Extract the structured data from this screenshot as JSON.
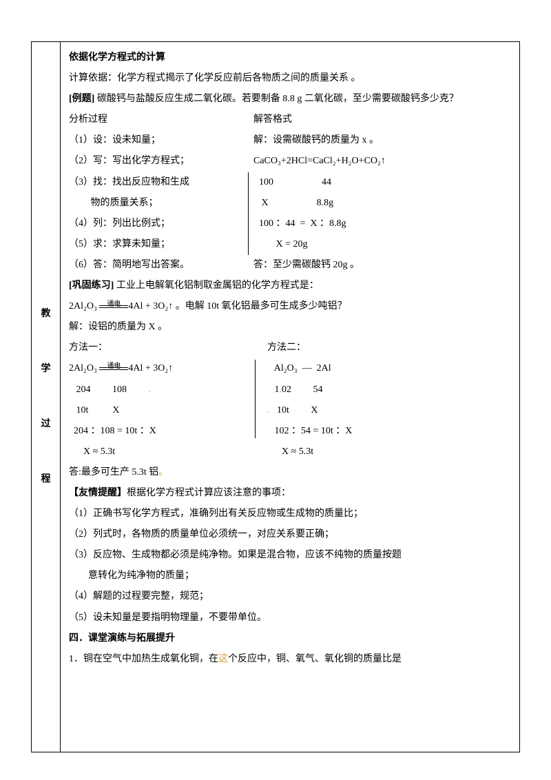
{
  "title": "依据化学方程式的计算",
  "basis": "计算依据：化学方程式揭示了化学反应前后各物质之间的质量关系 。",
  "example_label": "[例题]",
  "example_text": " 碳酸钙与盐酸反应生成二氧化碳。若要制备 8.8 g 二氧化碳，至少需要碳酸钙多少克？",
  "analysis_header": "分析过程",
  "solve_header": "解答格式",
  "steps": {
    "s1": "（1）设：设未知量；",
    "s2": "（2）写：写出化学方程式；",
    "s3a": "（3）找：找出反应物和生成",
    "s3b": "         物的质量关系；",
    "s4": "（4）列：列出比例式；",
    "s5": "（5）求：求算未知量；",
    "s6": "（6）答：简明地写出答案。"
  },
  "solve": {
    "set": "解：设需碳酸钙的质量为 x 。",
    "eq": "CaCO₃+2HCl=CaCl₂+H₂O+CO₂↑",
    "row1": "  100                    44",
    "row2": "   X                    8.8g",
    "ratio": "  100 ：44  =  X ：8.8g",
    "result": "         X = 20g",
    "answer": "答：至少需碳酸钙 20g 。"
  },
  "practice_label": "[巩固练习]",
  "practice_text": " 工业上电解氧化铝制取金属铝的化学方程式是：",
  "practice_eq_pre": " 2Al₂O₃  ",
  "practice_eq_label": "通电",
  "practice_eq_post": "4Al + 3O₂↑  。电解 10t 氧化铝最多可生成多少吨铝？",
  "practice_set": "解：设铝的质量为 X 。",
  "method1": "方法一：",
  "method2": "方法二：",
  "m1_eq_pre": " 2Al₂O₃   ",
  "m1_eq_label": "通电",
  "m1_eq_post": "4Al + 3O₂↑",
  "m1_row1": "   204         108",
  "m1_row2": "   10t          X",
  "m1_ratio": "  204 ：108 = 10t ：X",
  "m1_result": "      X ≈ 5.3t",
  "m2_eq": "   Al₂O₃  —  2Al",
  "m2_row1a": "   1",
  "m2_row1b": "02         54",
  "m2_row2": "   10t         X",
  "m2_ratio": "   102 ：54 = 10t ：X",
  "m2_result": "      X ≈ 5.3t",
  "practice_answer_a": "答:最多可生产 5.3t 铝",
  "practice_answer_b": "。",
  "reminder_label": "【友情提醒】",
  "reminder_text": "根据化学方程式计算应该注意的事项：",
  "r1": "（1）正确书写化学方程式，准确列出有关反应物或生成物的质量比；",
  "r2": "（2）列式时，各物质的质量单位必须统一，对应关系要正确；",
  "r3a": "（3）反应物、生成物都必须是纯净物。如果是混合物，应该不纯物的质量按题",
  "r3b": "意转化为纯净物的质量；",
  "r4": "（4）解题的过程要完整，规范；",
  "r5": "（5）设未知量是要指明物理量，不要带单位。",
  "section4": "四．课堂演练与拓展提升",
  "q1a": "1．铜在空气中加热生成氧化铜，在",
  "q1b": "这",
  "q1c": "个反应中，铜、氧气、氧化铜的质量比是",
  "sidebar": {
    "c1": "教",
    "c2": "学",
    "c3": "过",
    "c4": "程"
  }
}
